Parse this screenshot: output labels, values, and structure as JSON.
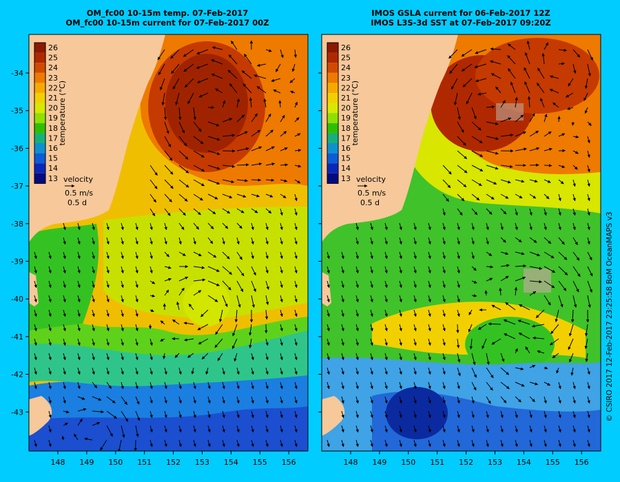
{
  "panels": [
    {
      "title_line1": "OM_fc00 10-15m temp. 07-Feb-2017",
      "title_line2": "OM_fc00 10-15m current for 07-Feb-2017 00Z"
    },
    {
      "title_line1": "IMOS GSLA current for 06-Feb-2017 12Z",
      "title_line2": "IMOS L3S-3d SST at 07-Feb-2017 09:20Z"
    }
  ],
  "colorbar": {
    "ticks": [
      "26",
      "25",
      "24",
      "23",
      "22",
      "21",
      "20",
      "19",
      "18",
      "17",
      "16",
      "15",
      "14",
      "13"
    ],
    "label": "temperature (°C)",
    "colors": [
      "#8b1a00",
      "#b02800",
      "#d04a00",
      "#ee7a00",
      "#f6aa00",
      "#f2d000",
      "#d8e800",
      "#8ee000",
      "#2ec000",
      "#15b07a",
      "#0c90d0",
      "#0a5cd8",
      "#0a28b8",
      "#040a80"
    ]
  },
  "velocity_key": {
    "label": "velocity",
    "speed": "0.5 m/s",
    "time": "0.5 d"
  },
  "axes": {
    "lat_labels": [
      "-34",
      "-35",
      "-36",
      "-37",
      "-38",
      "-39",
      "-40",
      "-41",
      "-42",
      "-43"
    ],
    "lon_labels": [
      "148",
      "149",
      "150",
      "151",
      "152",
      "153",
      "154",
      "155",
      "156"
    ]
  },
  "credit": "© CSIRO 2017   12-Feb-2017 23:25:58 BoM OceanMAPS v3",
  "colors": {
    "background": "#00ccff",
    "land": "#f7c89a",
    "frame": "#000000"
  }
}
